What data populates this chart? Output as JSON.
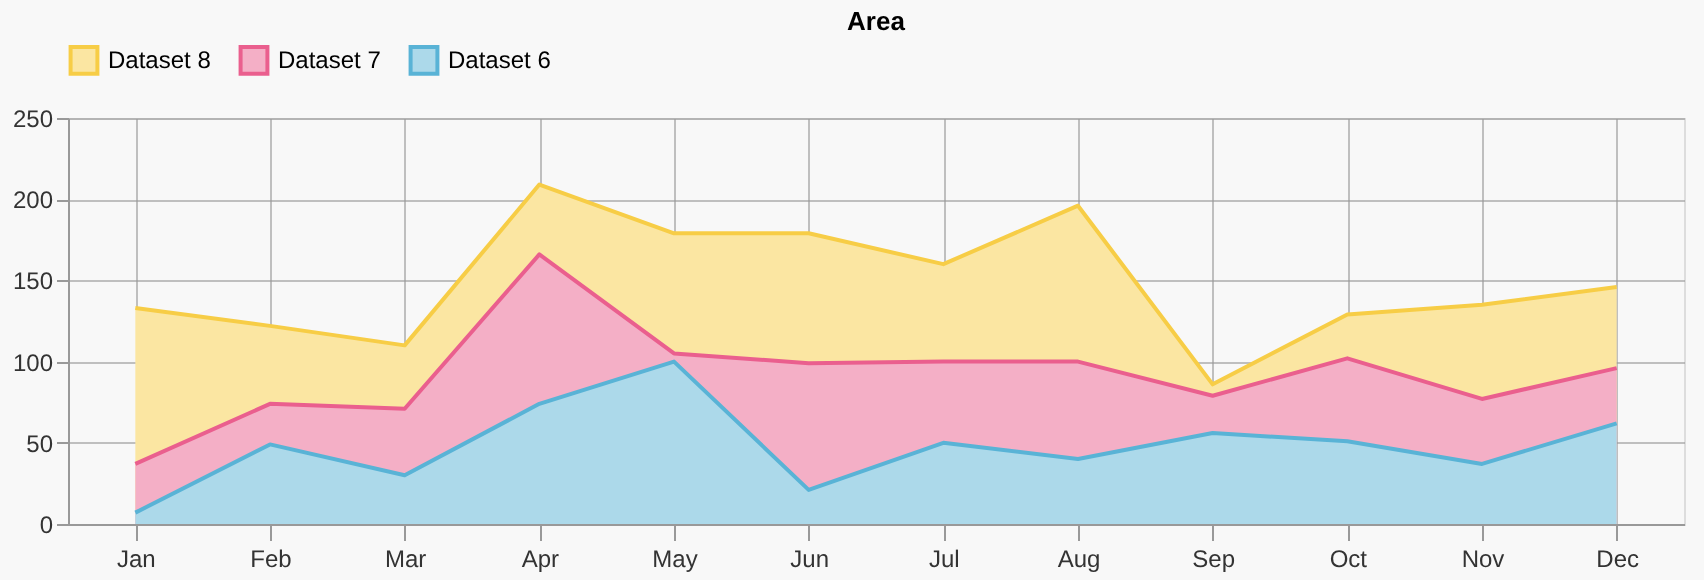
{
  "chart_data": {
    "type": "area",
    "title": "Area",
    "categories": [
      "Jan",
      "Feb",
      "Mar",
      "Apr",
      "May",
      "Jun",
      "Jul",
      "Aug",
      "Sep",
      "Oct",
      "Nov",
      "Dec"
    ],
    "series": [
      {
        "name": "Dataset 8",
        "color": "#f7cd46",
        "values": [
          133,
          122,
          110,
          209,
          179,
          179,
          160,
          196,
          86,
          129,
          135,
          146
        ]
      },
      {
        "name": "Dataset 7",
        "color": "#ea5f8e",
        "values": [
          37,
          74,
          71,
          166,
          105,
          99,
          100,
          100,
          79,
          102,
          77,
          96
        ]
      },
      {
        "name": "Dataset 6",
        "color": "#59b3d6",
        "values": [
          7,
          49,
          30,
          74,
          100,
          21,
          50,
          40,
          56,
          51,
          37,
          62
        ]
      }
    ],
    "ylim": [
      0,
      250
    ],
    "yticks": [
      0,
      50,
      100,
      150,
      200,
      250
    ],
    "grid": true,
    "legend": "top"
  }
}
